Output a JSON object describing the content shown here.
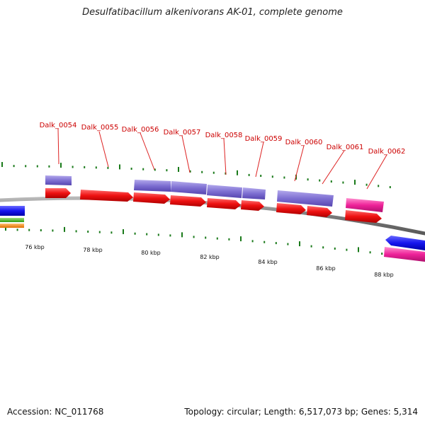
{
  "title": "Desulfatibacillum alkenivorans AK-01, complete genome",
  "footer": {
    "accession": "Accession: NC_011768",
    "summary": "Topology: circular; Length: 6,517,073 bp; Genes: 5,314"
  },
  "colors": {
    "backbone": "#808080",
    "tick": "#1a7a1a",
    "label": "#cc0000",
    "leader": "#dd2222",
    "cds_forward": "#ee1111",
    "gene_forward": "#7e6fd2",
    "cds_pink": "#ee2299",
    "reverse_blue": "#1515ee",
    "green_track": "#44bb22",
    "orange_track": "#ff8800"
  },
  "scale": {
    "unit": "kbp",
    "labels": [
      "76 kbp",
      "78 kbp",
      "80 kbp",
      "82 kbp",
      "84 kbp",
      "86 kbp",
      "88 kbp"
    ]
  },
  "gene_labels": [
    "Dalk_0054",
    "Dalk_0055",
    "Dalk_0056",
    "Dalk_0057",
    "Dalk_0058",
    "Dalk_0059",
    "Dalk_0060",
    "Dalk_0061",
    "Dalk_0062"
  ]
}
